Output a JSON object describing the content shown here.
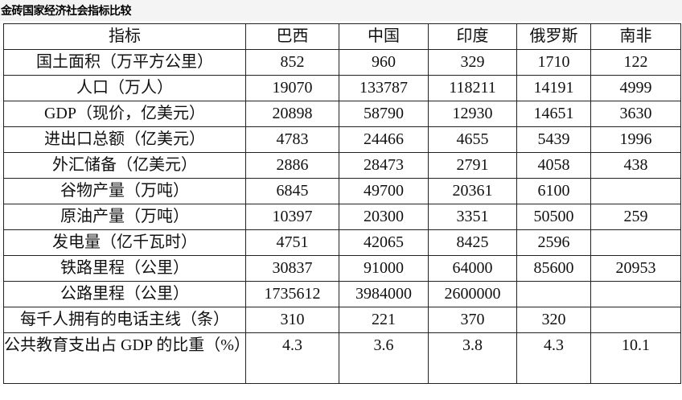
{
  "title": "金砖国家经济社会指标比较",
  "table": {
    "headers": [
      "指标",
      "巴西",
      "中国",
      "印度",
      "俄罗斯",
      "南非"
    ],
    "rows": [
      [
        "国土面积（万平方公里）",
        "852",
        "960",
        "329",
        "1710",
        "122"
      ],
      [
        "人口（万人）",
        "19070",
        "133787",
        "118211",
        "14191",
        "4999"
      ],
      [
        "GDP（现价，亿美元）",
        "20898",
        "58790",
        "12930",
        "14651",
        "3630"
      ],
      [
        "进出口总额（亿美元）",
        "4783",
        "24466",
        "4655",
        "5439",
        "1996"
      ],
      [
        "外汇储备（亿美元）",
        "2886",
        "28473",
        "2791",
        "4058",
        "438"
      ],
      [
        "谷物产量（万吨）",
        "6845",
        "49700",
        "20361",
        "6100",
        ""
      ],
      [
        "原油产量（万吨）",
        "10397",
        "20300",
        "3351",
        "50500",
        "259"
      ],
      [
        "发电量（亿千瓦时）",
        "4751",
        "42065",
        "8425",
        "2596",
        ""
      ],
      [
        "铁路里程（公里）",
        "30837",
        "91000",
        "64000",
        "85600",
        "20953"
      ],
      [
        "公路里程（公里）",
        "1735612",
        "3984000",
        "2600000",
        "",
        ""
      ],
      [
        "每千人拥有的电话主线（条）",
        "310",
        "221",
        "370",
        "320",
        ""
      ],
      [
        "公共教育支出占 GDP 的比重（%）",
        "4.3",
        "3.6",
        "3.8",
        "4.3",
        "10.1"
      ]
    ]
  }
}
